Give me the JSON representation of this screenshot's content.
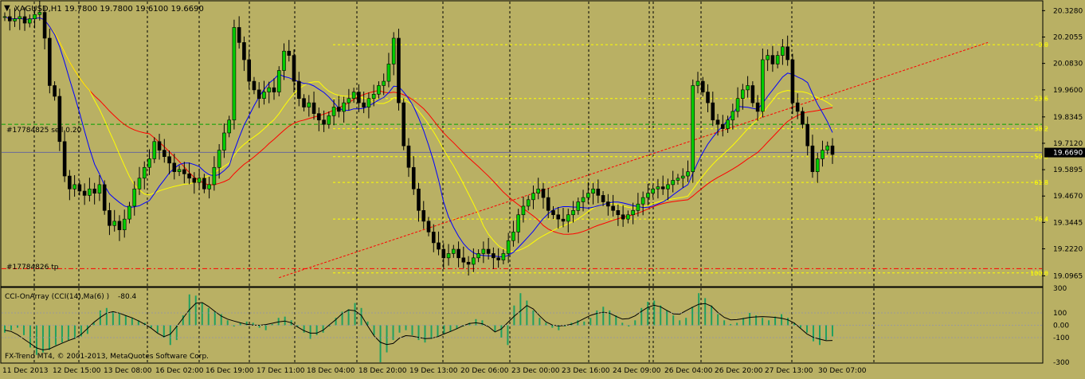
{
  "header": {
    "collapse_glyph": "▼",
    "title": "XAGUSD,H1  19.7800 19.7800 19.6100 19.6690"
  },
  "labels": {
    "sell_order": "#17784825 sell 0.20",
    "tp_order": "#17784826 tp",
    "indicator_title": "CCI-OnArray (CCI(14),Ma(6) )",
    "indicator_value": "-80.4",
    "copyright": "FX-Trend MT4, © 2001-2013, MetaQuotes Software Corp."
  },
  "colors": {
    "background": "#b9b064",
    "grid": "#000000",
    "border": "#000000",
    "fib": "#ffff00",
    "ma_red": "#ff0000",
    "ma_blue": "#0000ff",
    "ma_yellow": "#ffff00",
    "candle_up": "#00cc00",
    "candle_down": "#000000",
    "cci_hist": "#20a060",
    "price_tag_bg": "#000000",
    "price_tag_fg": "#ffffff"
  },
  "chart_data": [
    {
      "type": "candlestick",
      "symbol": "XAGUSD",
      "timeframe": "H1",
      "ylim": [
        19.05,
        20.37
      ],
      "y_ticks": [
        "20.3280",
        "20.2055",
        "20.0830",
        "19.9600",
        "19.8345",
        "19.7120",
        "19.5895",
        "19.4670",
        "19.3445",
        "19.2220",
        "19.0965"
      ],
      "current_price": "19.6690",
      "x_labels": [
        "11 Dec 2013",
        "12 Dec 15:00",
        "13 Dec 08:00",
        "16 Dec 02:00",
        "16 Dec 19:00",
        "17 Dec 11:00",
        "18 Dec 04:00",
        "18 Dec 20:00",
        "19 Dec 13:00",
        "20 Dec 06:00",
        "23 Dec 00:00",
        "23 Dec 16:00",
        "24 Dec 09:00",
        "26 Dec 04:00",
        "26 Dec 20:00",
        "27 Dec 13:00",
        "30 Dec 07:00"
      ],
      "fib_levels": [
        {
          "label": "0.0",
          "value": 20.17
        },
        {
          "label": "23.6",
          "value": 19.92
        },
        {
          "label": "38.2",
          "value": 19.78
        },
        {
          "label": "50.0",
          "value": 19.65
        },
        {
          "label": "61.8",
          "value": 19.53
        },
        {
          "label": "76.4",
          "value": 19.36
        },
        {
          "label": "100.0",
          "value": 19.11
        }
      ],
      "order_lines": [
        {
          "label": "#17784825 sell 0.20",
          "value": 19.8,
          "style": "dash",
          "color": "#00a000"
        },
        {
          "label": "#17784826 tp",
          "value": 19.13,
          "style": "dash-dot",
          "color": "#ff0000"
        }
      ],
      "trendline": {
        "from": [
          19.1,
          19.11
        ],
        "to": [
          20.17,
          20.18
        ]
      },
      "close_path": [
        20.3,
        20.28,
        20.29,
        20.3,
        20.27,
        20.29,
        20.31,
        20.32,
        20.2,
        19.98,
        19.93,
        19.72,
        19.56,
        19.5,
        19.52,
        19.49,
        19.47,
        19.5,
        19.48,
        19.52,
        19.4,
        19.33,
        19.35,
        19.31,
        19.36,
        19.42,
        19.5,
        19.55,
        19.6,
        19.64,
        19.72,
        19.68,
        19.65,
        19.62,
        19.58,
        19.59,
        19.57,
        19.55,
        19.53,
        19.55,
        19.5,
        19.52,
        19.6,
        19.68,
        19.76,
        19.82,
        20.25,
        20.18,
        20.1,
        20.0,
        19.96,
        19.92,
        19.95,
        19.97,
        19.95,
        20.05,
        20.14,
        20.12,
        20.0,
        19.92,
        19.88,
        19.9,
        19.85,
        19.82,
        19.8,
        19.84,
        19.88,
        19.86,
        19.9,
        19.92,
        19.95,
        19.9,
        19.88,
        19.92,
        19.94,
        19.98,
        20.0,
        20.08,
        20.2,
        19.9,
        19.7,
        19.6,
        19.5,
        19.4,
        19.35,
        19.3,
        19.25,
        19.22,
        19.18,
        19.2,
        19.22,
        19.18,
        19.16,
        19.15,
        19.18,
        19.2,
        19.22,
        19.2,
        19.18,
        19.17,
        19.2,
        19.26,
        19.3,
        19.38,
        19.42,
        19.45,
        19.48,
        19.5,
        19.46,
        19.4,
        19.38,
        19.36,
        19.35,
        19.38,
        19.4,
        19.44,
        19.46,
        19.48,
        19.5,
        19.47,
        19.44,
        19.42,
        19.4,
        19.38,
        19.36,
        19.38,
        19.4,
        19.43,
        19.46,
        19.48,
        19.5,
        19.51,
        19.5,
        19.52,
        19.54,
        19.55,
        19.56,
        19.58,
        19.98,
        20.0,
        19.95,
        19.9,
        19.82,
        19.8,
        19.78,
        19.82,
        19.86,
        19.92,
        19.96,
        19.98,
        19.9,
        19.86,
        20.1,
        20.12,
        20.08,
        20.12,
        20.16,
        20.1,
        19.9,
        19.86,
        19.8,
        19.7,
        19.58,
        19.64,
        19.68,
        19.7,
        19.66
      ]
    },
    {
      "type": "histogram",
      "name": "CCI-OnArray (CCI(14),Ma(6) )",
      "ylim": [
        -300,
        300
      ],
      "y_ticks": [
        "300",
        "100",
        "0.00",
        "-100",
        "-300"
      ],
      "value_path": [
        -60,
        -40,
        -20,
        -80,
        -180,
        -240,
        -220,
        -200,
        -160,
        -140,
        -120,
        -110,
        -90,
        -70,
        20,
        120,
        140,
        110,
        100,
        80,
        60,
        40,
        20,
        -20,
        -60,
        -100,
        -160,
        -120,
        80,
        250,
        240,
        180,
        140,
        110,
        90,
        40,
        -10,
        20,
        30,
        20,
        -20,
        -40,
        10,
        60,
        70,
        40,
        -10,
        -60,
        -110,
        -80,
        -60,
        -10,
        60,
        110,
        130,
        180,
        140,
        30,
        -80,
        -300,
        -220,
        -120,
        -60,
        -40,
        -80,
        -120,
        -140,
        -110,
        -90,
        -70,
        -50,
        -30,
        -10,
        20,
        50,
        40,
        0,
        -50,
        -100,
        -160,
        160,
        260,
        200,
        120,
        60,
        20,
        -20,
        -40,
        -10,
        20,
        40,
        30,
        60,
        120,
        150,
        120,
        80,
        20,
        -10,
        40,
        140,
        190,
        200,
        160,
        120,
        80,
        40,
        60,
        150,
        260,
        220,
        160,
        90,
        40,
        10,
        20,
        60,
        100,
        80,
        60,
        40,
        70,
        90,
        60,
        20,
        -20,
        -60,
        -130,
        -160,
        -120,
        -90
      ]
    }
  ]
}
